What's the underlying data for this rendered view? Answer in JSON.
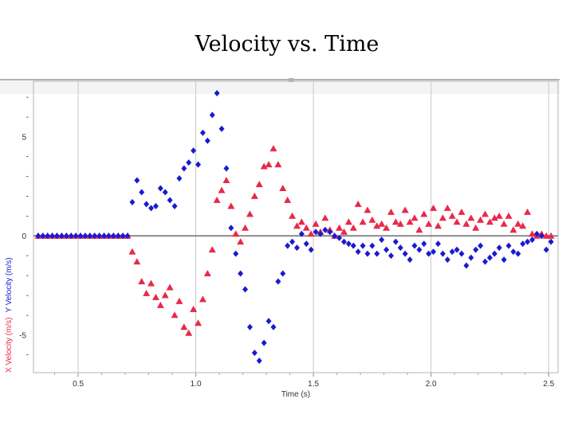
{
  "slide": {
    "title": "Velocity vs. Time"
  },
  "chart_data": {
    "type": "scatter",
    "title": "Velocity vs. Time",
    "xlabel": "Time (s)",
    "ylabel": "X Velocity (m/s)   Y Velocity (m/s)",
    "ylabel_parts": [
      "X Velocity (m/s)",
      "Y Velocity (m/s)"
    ],
    "xlim": [
      0.31,
      2.54
    ],
    "ylim": [
      -6.9,
      7.8
    ],
    "x_ticks": [
      0.5,
      1.0,
      1.5,
      2.0,
      2.5
    ],
    "x_tick_labels": [
      "0.5",
      "1.0",
      "1.5",
      "2.0",
      "2.5"
    ],
    "y_ticks": [
      5,
      0,
      -5
    ],
    "y_tick_labels": [
      "5",
      "0",
      "-5"
    ],
    "grid": "vertical",
    "legend": "none",
    "colors": {
      "x_series": "#e8294a",
      "y_series": "#1a1ad0",
      "zero_line": "#777777",
      "grid": "#c8c8c8"
    },
    "series": [
      {
        "name": "X Velocity (m/s)",
        "marker": "triangle",
        "color": "#e8294a",
        "x": [
          0.33,
          0.35,
          0.37,
          0.39,
          0.41,
          0.43,
          0.45,
          0.47,
          0.49,
          0.51,
          0.53,
          0.55,
          0.57,
          0.59,
          0.61,
          0.63,
          0.65,
          0.67,
          0.69,
          0.71,
          0.73,
          0.75,
          0.77,
          0.79,
          0.81,
          0.83,
          0.85,
          0.87,
          0.89,
          0.91,
          0.93,
          0.95,
          0.97,
          0.99,
          1.01,
          1.03,
          1.05,
          1.07,
          1.09,
          1.11,
          1.13,
          1.15,
          1.17,
          1.19,
          1.21,
          1.23,
          1.25,
          1.27,
          1.29,
          1.31,
          1.33,
          1.35,
          1.37,
          1.39,
          1.41,
          1.43,
          1.45,
          1.47,
          1.49,
          1.51,
          1.53,
          1.55,
          1.57,
          1.59,
          1.61,
          1.63,
          1.65,
          1.67,
          1.69,
          1.71,
          1.73,
          1.75,
          1.77,
          1.79,
          1.81,
          1.83,
          1.85,
          1.87,
          1.89,
          1.91,
          1.93,
          1.95,
          1.97,
          1.99,
          2.01,
          2.03,
          2.05,
          2.07,
          2.09,
          2.11,
          2.13,
          2.15,
          2.17,
          2.19,
          2.21,
          2.23,
          2.25,
          2.27,
          2.29,
          2.31,
          2.33,
          2.35,
          2.37,
          2.39,
          2.41,
          2.43,
          2.45,
          2.47,
          2.49,
          2.51
        ],
        "y": [
          0,
          0,
          0,
          0,
          0,
          0,
          0,
          0,
          0,
          0,
          0,
          0,
          0,
          0,
          0,
          0,
          0,
          0,
          0,
          0,
          -0.8,
          -1.3,
          -2.3,
          -2.9,
          -2.4,
          -3.1,
          -3.5,
          -3.0,
          -2.6,
          -4.0,
          -3.3,
          -4.6,
          -4.9,
          -3.7,
          -4.4,
          -3.2,
          -1.9,
          -0.7,
          1.8,
          2.3,
          2.8,
          1.5,
          0.1,
          -0.3,
          0.4,
          1.1,
          2.0,
          2.6,
          3.5,
          3.6,
          4.4,
          3.6,
          2.4,
          1.8,
          1.0,
          0.5,
          0.7,
          0.4,
          0.1,
          0.6,
          0.2,
          0.9,
          0.3,
          0.0,
          0.4,
          0.2,
          0.7,
          0.4,
          1.6,
          0.7,
          1.3,
          0.8,
          0.5,
          0.6,
          0.4,
          1.2,
          0.7,
          0.6,
          1.3,
          0.7,
          0.9,
          0.3,
          1.1,
          0.6,
          1.4,
          0.5,
          0.9,
          1.4,
          1.0,
          0.7,
          1.2,
          0.6,
          0.9,
          0.4,
          0.8,
          1.1,
          0.7,
          0.9,
          1.0,
          0.6,
          1.0,
          0.3,
          0.6,
          0.5,
          1.2,
          0.1,
          0.0,
          0.1,
          0.0,
          0.0
        ]
      },
      {
        "name": "Y Velocity (m/s)",
        "marker": "diamond",
        "color": "#1a1ad0",
        "x": [
          0.33,
          0.35,
          0.37,
          0.39,
          0.41,
          0.43,
          0.45,
          0.47,
          0.49,
          0.51,
          0.53,
          0.55,
          0.57,
          0.59,
          0.61,
          0.63,
          0.65,
          0.67,
          0.69,
          0.71,
          0.73,
          0.75,
          0.77,
          0.79,
          0.81,
          0.83,
          0.85,
          0.87,
          0.89,
          0.91,
          0.93,
          0.95,
          0.97,
          0.99,
          1.01,
          1.03,
          1.05,
          1.07,
          1.09,
          1.11,
          1.13,
          1.15,
          1.17,
          1.19,
          1.21,
          1.23,
          1.25,
          1.27,
          1.29,
          1.31,
          1.33,
          1.35,
          1.37,
          1.39,
          1.41,
          1.43,
          1.45,
          1.47,
          1.49,
          1.51,
          1.53,
          1.55,
          1.57,
          1.59,
          1.61,
          1.63,
          1.65,
          1.67,
          1.69,
          1.71,
          1.73,
          1.75,
          1.77,
          1.79,
          1.81,
          1.83,
          1.85,
          1.87,
          1.89,
          1.91,
          1.93,
          1.95,
          1.97,
          1.99,
          2.01,
          2.03,
          2.05,
          2.07,
          2.09,
          2.11,
          2.13,
          2.15,
          2.17,
          2.19,
          2.21,
          2.23,
          2.25,
          2.27,
          2.29,
          2.31,
          2.33,
          2.35,
          2.37,
          2.39,
          2.41,
          2.43,
          2.45,
          2.47,
          2.49,
          2.51
        ],
        "y": [
          0,
          0,
          0,
          0,
          0,
          0,
          0,
          0,
          0,
          0,
          0,
          0,
          0,
          0,
          0,
          0,
          0,
          0,
          0,
          0,
          1.7,
          2.8,
          2.2,
          1.6,
          1.4,
          1.5,
          2.4,
          2.2,
          1.8,
          1.5,
          2.9,
          3.4,
          3.7,
          4.3,
          3.6,
          5.2,
          4.8,
          6.1,
          7.2,
          5.4,
          3.4,
          0.4,
          -0.9,
          -1.9,
          -2.7,
          -4.6,
          -5.9,
          -6.3,
          -5.4,
          -4.3,
          -4.6,
          -2.3,
          -1.9,
          -0.5,
          -0.3,
          -0.6,
          0.1,
          -0.4,
          -0.7,
          0.2,
          0.1,
          0.3,
          0.2,
          0.0,
          -0.1,
          -0.3,
          -0.4,
          -0.5,
          -0.8,
          -0.5,
          -0.9,
          -0.5,
          -0.9,
          -0.2,
          -0.7,
          -1.0,
          -0.3,
          -0.6,
          -0.9,
          -1.2,
          -0.5,
          -0.7,
          -0.4,
          -0.9,
          -0.8,
          -0.4,
          -0.9,
          -1.2,
          -0.8,
          -0.7,
          -0.9,
          -1.5,
          -1.1,
          -0.7,
          -0.5,
          -1.3,
          -1.1,
          -0.9,
          -0.6,
          -1.2,
          -0.5,
          -0.8,
          -0.9,
          -0.4,
          -0.3,
          -0.2,
          0.1,
          0.0,
          -0.7,
          -0.3
        ]
      }
    ]
  }
}
